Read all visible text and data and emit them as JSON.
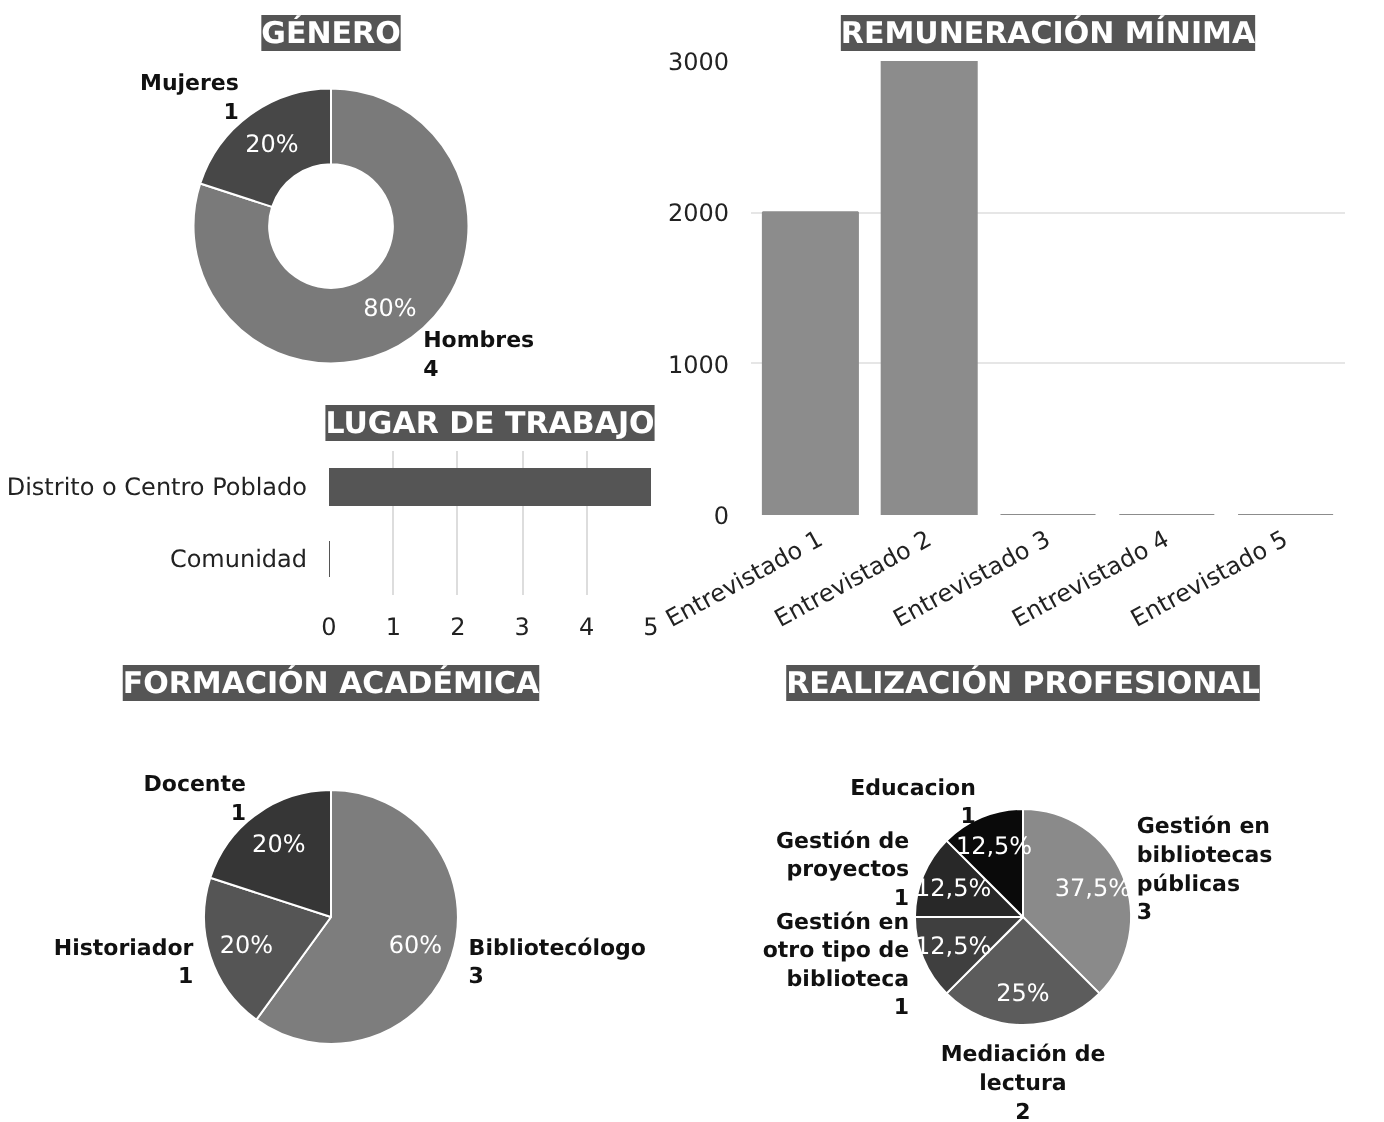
{
  "chart_data": [
    {
      "type": "donut",
      "title": "GÉNERO",
      "categories": [
        "Hombres\n4",
        "Mujeres\n1"
      ],
      "values": [
        80,
        20
      ],
      "value_labels": [
        "80%",
        "20%"
      ],
      "colors": [
        "#7a7a7a",
        "#474747"
      ]
    },
    {
      "type": "bar",
      "title": "REMUNERACIÓN MÍNIMA",
      "categories": [
        "Entrevistado 1",
        "Entrevistado 2",
        "Entrevistado 3",
        "Entrevistado 4",
        "Entrevistado 5"
      ],
      "values": [
        2000,
        3000,
        0,
        0,
        0
      ],
      "color": "#8c8c8c",
      "ylim": [
        0,
        3000
      ],
      "yticks": [
        0,
        1000,
        2000,
        3000
      ],
      "grid": "y"
    },
    {
      "type": "bar",
      "title": "LUGAR DE TRABAJO",
      "orientation": "horizontal",
      "categories": [
        "Distrito o Centro Poblado",
        "Comunidad"
      ],
      "values": [
        5,
        0
      ],
      "color": "#555555",
      "xlim": [
        0,
        5
      ],
      "xticks": [
        0,
        1,
        2,
        3,
        4,
        5
      ],
      "grid": "x"
    },
    {
      "type": "pie",
      "title": "FORMACIÓN ACADÉMICA",
      "categories": [
        "Bibliotecólogo\n3",
        "Historiador\n1",
        "Docente\n1"
      ],
      "values": [
        60,
        20,
        20
      ],
      "value_labels": [
        "60%",
        "20%",
        "20%"
      ],
      "colors": [
        "#7d7d7d",
        "#555555",
        "#363636"
      ]
    },
    {
      "type": "pie",
      "title": "REALIZACIÓN PROFESIONAL",
      "categories": [
        "Gestión en bibliotecas públicas\n3",
        "Mediación de lectura\n2",
        "Gestión en otro tipo de biblioteca\n1",
        "Gestión de proyectos\n1",
        "Educacion\n1"
      ],
      "values": [
        37.5,
        25,
        12.5,
        12.5,
        12.5
      ],
      "value_labels": [
        "37,5%",
        "25%",
        "12,5%",
        "12,5%",
        "12,5%"
      ],
      "colors": [
        "#8a8a8a",
        "#5c5c5c",
        "#3f3f3f",
        "#282828",
        "#0a0a0a"
      ]
    }
  ]
}
